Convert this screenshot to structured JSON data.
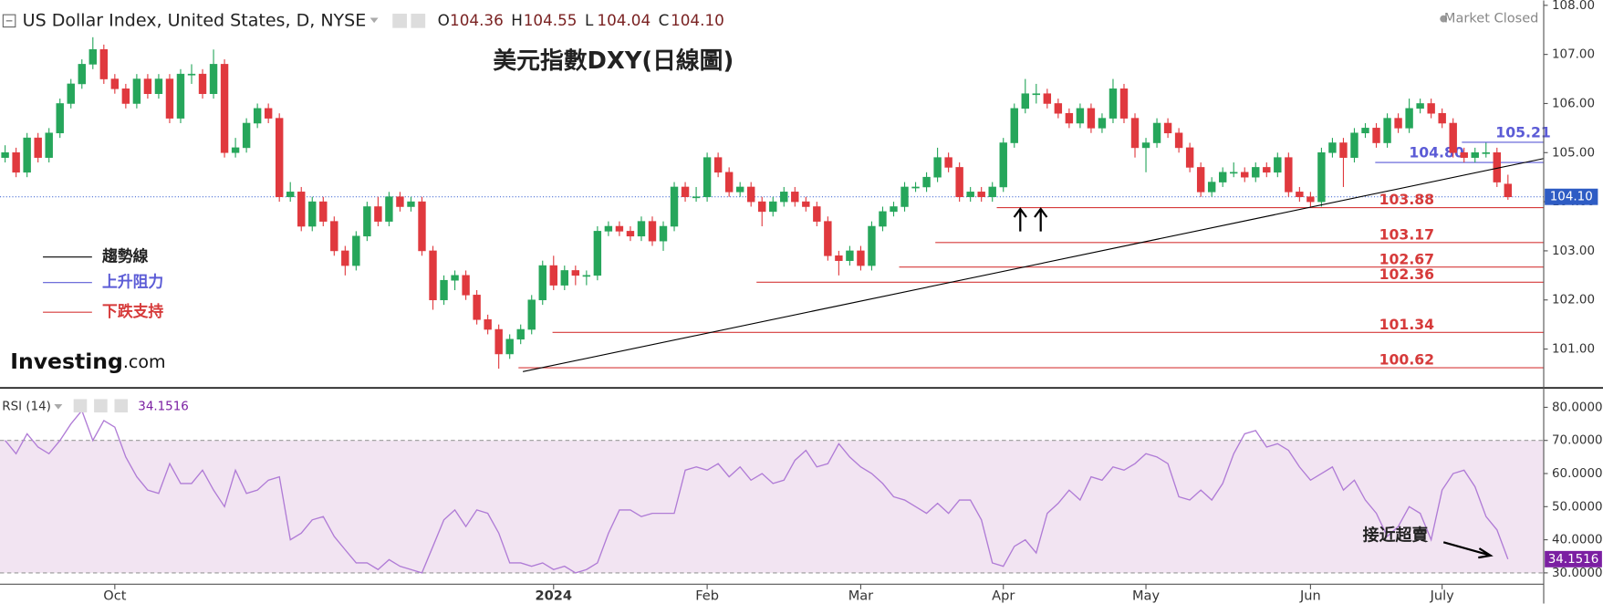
{
  "header": {
    "title": "US Dollar Index, United States, D, NYSE",
    "ohlc": [
      [
        "O",
        "104.36"
      ],
      [
        "H",
        "104.55"
      ],
      [
        "L",
        "104.04"
      ],
      [
        "C",
        "104.10"
      ]
    ],
    "status": "Market Closed",
    "brand": "Investing",
    "brand_suffix": ".com"
  },
  "chart_data": [
    {
      "type": "candlestick",
      "title": "美元指數DXY(日線圖)",
      "up_color": "#26a65b",
      "down_color": "#e0393e",
      "xlim": [
        -0.466,
        140.26
      ],
      "ylim": [
        100.23,
        108.1
      ],
      "yticks": [
        {
          "value": 101,
          "label": "101.00"
        },
        {
          "value": 102,
          "label": "102.00"
        },
        {
          "value": 103,
          "label": "103.00"
        },
        {
          "value": 104,
          "label": "104.00"
        },
        {
          "value": 105,
          "label": "105.00"
        },
        {
          "value": 106,
          "label": "106.00"
        },
        {
          "value": 107,
          "label": "107.00"
        },
        {
          "value": 108,
          "label": "108.00"
        }
      ],
      "last_price": 104.1,
      "last_price_label": "104.10",
      "trendline": {
        "name": "趨勢線",
        "color": "#000000",
        "x": [
          47.2,
          140.26
        ],
        "y": [
          100.54,
          104.88
        ]
      },
      "resistance": {
        "name": "上升阻力",
        "color": "#5b5bd6",
        "levels": [
          {
            "value": 105.21,
            "label": "105.21",
            "from": 132.8
          },
          {
            "value": 104.8,
            "label": "104.80",
            "from": 124.9
          }
        ]
      },
      "support": {
        "name": "下跌支持",
        "color": "#d63a3a",
        "levels": [
          {
            "value": 103.88,
            "label": "103.88",
            "from": 90.4
          },
          {
            "value": 103.17,
            "label": "103.17",
            "from": 84.8
          },
          {
            "value": 102.67,
            "label": "102.67",
            "from": 81.5
          },
          {
            "value": 102.36,
            "label": "102.36",
            "from": 68.5
          },
          {
            "value": 101.34,
            "label": "101.34",
            "from": 49.9
          },
          {
            "value": 100.62,
            "label": "100.62",
            "from": 46.8
          }
        ]
      },
      "candles": [
        [
          104.9,
          105.15,
          104.8,
          105.0
        ],
        [
          105.0,
          105.1,
          104.5,
          104.6
        ],
        [
          104.6,
          105.4,
          104.5,
          105.3
        ],
        [
          105.3,
          105.4,
          104.8,
          104.9
        ],
        [
          104.9,
          105.5,
          104.8,
          105.4
        ],
        [
          105.4,
          106.1,
          105.3,
          106.0
        ],
        [
          106.0,
          106.5,
          105.9,
          106.4
        ],
        [
          106.4,
          106.9,
          106.3,
          106.8
        ],
        [
          106.8,
          107.35,
          106.7,
          107.1
        ],
        [
          107.1,
          107.2,
          106.4,
          106.5
        ],
        [
          106.5,
          106.6,
          106.2,
          106.3
        ],
        [
          106.3,
          106.4,
          105.9,
          106.0
        ],
        [
          106.0,
          106.6,
          105.9,
          106.5
        ],
        [
          106.5,
          106.6,
          106.1,
          106.2
        ],
        [
          106.2,
          106.6,
          106.1,
          106.5
        ],
        [
          106.5,
          106.6,
          105.6,
          105.7
        ],
        [
          105.7,
          106.7,
          105.6,
          106.6
        ],
        [
          106.6,
          106.8,
          106.4,
          106.6
        ],
        [
          106.6,
          106.7,
          106.1,
          106.2
        ],
        [
          106.2,
          107.1,
          106.1,
          106.8
        ],
        [
          106.8,
          106.9,
          104.9,
          105.0
        ],
        [
          105.0,
          105.3,
          104.9,
          105.1
        ],
        [
          105.1,
          105.7,
          105.0,
          105.6
        ],
        [
          105.6,
          106.0,
          105.5,
          105.9
        ],
        [
          105.9,
          106.0,
          105.6,
          105.7
        ],
        [
          105.7,
          105.8,
          104.0,
          104.1
        ],
        [
          104.1,
          104.4,
          104.0,
          104.2
        ],
        [
          104.2,
          104.3,
          103.4,
          103.5
        ],
        [
          103.5,
          104.1,
          103.4,
          104.0
        ],
        [
          104.0,
          104.1,
          103.5,
          103.6
        ],
        [
          103.6,
          103.7,
          102.9,
          103.0
        ],
        [
          103.0,
          103.1,
          102.5,
          102.7
        ],
        [
          102.7,
          103.4,
          102.6,
          103.3
        ],
        [
          103.3,
          104.0,
          103.2,
          103.9
        ],
        [
          103.9,
          104.1,
          103.5,
          103.6
        ],
        [
          103.6,
          104.2,
          103.5,
          104.1
        ],
        [
          104.1,
          104.2,
          103.8,
          103.9
        ],
        [
          103.9,
          104.1,
          103.8,
          104.0
        ],
        [
          104.0,
          104.1,
          102.9,
          103.0
        ],
        [
          103.0,
          103.1,
          101.8,
          102.0
        ],
        [
          102.0,
          102.5,
          101.9,
          102.4
        ],
        [
          102.4,
          102.6,
          102.2,
          102.5
        ],
        [
          102.5,
          102.6,
          102.0,
          102.1
        ],
        [
          102.1,
          102.2,
          101.5,
          101.6
        ],
        [
          101.6,
          101.7,
          101.3,
          101.4
        ],
        [
          101.4,
          101.5,
          100.6,
          100.9
        ],
        [
          100.9,
          101.3,
          100.8,
          101.2
        ],
        [
          101.2,
          101.5,
          101.1,
          101.4
        ],
        [
          101.4,
          102.1,
          101.3,
          102.0
        ],
        [
          102.0,
          102.8,
          101.9,
          102.7
        ],
        [
          102.7,
          102.9,
          102.2,
          102.3
        ],
        [
          102.3,
          102.7,
          102.2,
          102.6
        ],
        [
          102.6,
          102.7,
          102.3,
          102.5
        ],
        [
          102.5,
          102.6,
          102.3,
          102.5
        ],
        [
          102.5,
          103.5,
          102.4,
          103.4
        ],
        [
          103.4,
          103.6,
          103.3,
          103.5
        ],
        [
          103.5,
          103.6,
          103.3,
          103.4
        ],
        [
          103.4,
          103.5,
          103.2,
          103.3
        ],
        [
          103.3,
          103.7,
          103.2,
          103.6
        ],
        [
          103.6,
          103.7,
          103.1,
          103.2
        ],
        [
          103.2,
          103.6,
          103.0,
          103.5
        ],
        [
          103.5,
          104.4,
          103.4,
          104.3
        ],
        [
          104.3,
          104.4,
          104.0,
          104.1
        ],
        [
          104.1,
          104.3,
          104.0,
          104.1
        ],
        [
          104.1,
          105.0,
          104.0,
          104.9
        ],
        [
          104.9,
          105.0,
          104.5,
          104.6
        ],
        [
          104.6,
          104.7,
          104.1,
          104.2
        ],
        [
          104.2,
          104.4,
          104.1,
          104.3
        ],
        [
          104.3,
          104.4,
          103.9,
          104.0
        ],
        [
          104.0,
          104.1,
          103.5,
          103.8
        ],
        [
          103.8,
          104.1,
          103.7,
          104.0
        ],
        [
          104.0,
          104.3,
          103.9,
          104.2
        ],
        [
          104.2,
          104.3,
          103.9,
          104.0
        ],
        [
          104.0,
          104.1,
          103.8,
          103.9
        ],
        [
          103.9,
          104.0,
          103.5,
          103.6
        ],
        [
          103.6,
          103.7,
          102.8,
          102.9
        ],
        [
          102.9,
          103.0,
          102.5,
          102.8
        ],
        [
          102.8,
          103.1,
          102.7,
          103.0
        ],
        [
          103.0,
          103.1,
          102.6,
          102.7
        ],
        [
          102.7,
          103.6,
          102.6,
          103.5
        ],
        [
          103.5,
          103.9,
          103.4,
          103.8
        ],
        [
          103.8,
          104.0,
          103.7,
          103.9
        ],
        [
          103.9,
          104.4,
          103.8,
          104.3
        ],
        [
          104.3,
          104.4,
          104.2,
          104.3
        ],
        [
          104.3,
          104.6,
          104.2,
          104.5
        ],
        [
          104.5,
          105.1,
          104.4,
          104.9
        ],
        [
          104.9,
          105.0,
          104.6,
          104.7
        ],
        [
          104.7,
          104.8,
          104.0,
          104.1
        ],
        [
          104.1,
          104.3,
          104.0,
          104.2
        ],
        [
          104.2,
          104.3,
          104.0,
          104.1
        ],
        [
          104.1,
          104.4,
          104.0,
          104.3
        ],
        [
          104.3,
          105.3,
          104.2,
          105.2
        ],
        [
          105.2,
          106.0,
          105.1,
          105.9
        ],
        [
          105.9,
          106.5,
          105.8,
          106.2
        ],
        [
          106.2,
          106.4,
          106.0,
          106.2
        ],
        [
          106.2,
          106.3,
          105.9,
          106.0
        ],
        [
          106.0,
          106.1,
          105.7,
          105.8
        ],
        [
          105.8,
          105.9,
          105.5,
          105.6
        ],
        [
          105.6,
          106.0,
          105.5,
          105.9
        ],
        [
          105.9,
          106.0,
          105.4,
          105.5
        ],
        [
          105.5,
          105.8,
          105.4,
          105.7
        ],
        [
          105.7,
          106.5,
          105.6,
          106.3
        ],
        [
          106.3,
          106.4,
          105.6,
          105.7
        ],
        [
          105.7,
          105.8,
          104.9,
          105.1
        ],
        [
          105.1,
          105.3,
          104.6,
          105.2
        ],
        [
          105.2,
          105.7,
          105.1,
          105.6
        ],
        [
          105.6,
          105.7,
          105.3,
          105.4
        ],
        [
          105.4,
          105.5,
          105.0,
          105.1
        ],
        [
          105.1,
          105.2,
          104.6,
          104.7
        ],
        [
          104.7,
          104.8,
          104.1,
          104.2
        ],
        [
          104.2,
          104.5,
          104.1,
          104.4
        ],
        [
          104.4,
          104.7,
          104.3,
          104.6
        ],
        [
          104.6,
          104.8,
          104.5,
          104.6
        ],
        [
          104.6,
          104.7,
          104.4,
          104.5
        ],
        [
          104.5,
          104.8,
          104.4,
          104.7
        ],
        [
          104.7,
          104.8,
          104.5,
          104.6
        ],
        [
          104.6,
          105.0,
          104.5,
          104.9
        ],
        [
          104.9,
          105.0,
          104.1,
          104.2
        ],
        [
          104.2,
          104.3,
          104.0,
          104.1
        ],
        [
          104.1,
          104.2,
          103.9,
          104.0
        ],
        [
          104.0,
          105.1,
          103.9,
          105.0
        ],
        [
          105.0,
          105.3,
          104.9,
          105.2
        ],
        [
          105.2,
          105.3,
          104.3,
          104.9
        ],
        [
          104.9,
          105.5,
          104.8,
          105.4
        ],
        [
          105.4,
          105.6,
          105.3,
          105.5
        ],
        [
          105.5,
          105.6,
          105.1,
          105.2
        ],
        [
          105.2,
          105.8,
          105.1,
          105.7
        ],
        [
          105.7,
          105.8,
          105.4,
          105.5
        ],
        [
          105.5,
          106.1,
          105.4,
          105.9
        ],
        [
          105.9,
          106.1,
          105.8,
          106.0
        ],
        [
          106.0,
          106.1,
          105.7,
          105.8
        ],
        [
          105.8,
          105.9,
          105.5,
          105.6
        ],
        [
          105.6,
          105.7,
          104.9,
          105.0
        ],
        [
          105.0,
          105.1,
          104.8,
          104.9
        ],
        [
          104.9,
          105.1,
          104.8,
          105.0
        ],
        [
          105.0,
          105.2,
          104.9,
          105.0
        ],
        [
          105.0,
          105.1,
          104.3,
          104.4
        ],
        [
          104.36,
          104.55,
          104.04,
          104.1
        ]
      ]
    },
    {
      "type": "line",
      "title": "RSI (14)",
      "color": "#b07cd6",
      "band": [
        30,
        70
      ],
      "band_color": "#f2e4f2",
      "current_label": "34.1516",
      "annotation": "接近超賣",
      "xlim": [
        -0.466,
        140.26
      ],
      "ylim": [
        26.9,
        85.56
      ],
      "xticks": [
        {
          "value": 10,
          "label": "Oct"
        },
        {
          "value": 50,
          "label": "2024"
        },
        {
          "value": 64,
          "label": "Feb"
        },
        {
          "value": 78,
          "label": "Mar"
        },
        {
          "value": 91,
          "label": "Apr"
        },
        {
          "value": 104,
          "label": "May"
        },
        {
          "value": 119,
          "label": "Jun"
        },
        {
          "value": 131,
          "label": "July"
        }
      ],
      "yticks": [
        {
          "value": 30,
          "label": "30.0000"
        },
        {
          "value": 40,
          "label": "40.0000"
        },
        {
          "value": 50,
          "label": "50.0000"
        },
        {
          "value": 60,
          "label": "60.0000"
        },
        {
          "value": 70,
          "label": "70.0000"
        },
        {
          "value": 80,
          "label": "80.0000"
        }
      ],
      "values": [
        70,
        66,
        72,
        68,
        66,
        70,
        75,
        79,
        70,
        76,
        74,
        65,
        59,
        55,
        54,
        63,
        57,
        57,
        61,
        55,
        50,
        61,
        54,
        55,
        58,
        59,
        40,
        42,
        46,
        47,
        41,
        37,
        33,
        33,
        31,
        34,
        32,
        31,
        30,
        38,
        46,
        49,
        44,
        49,
        48,
        42,
        33,
        33,
        32,
        33,
        31,
        32,
        30,
        31,
        33,
        42,
        49,
        49,
        47,
        48,
        48,
        48,
        61,
        62,
        61,
        63,
        59,
        62,
        58,
        60,
        57,
        58,
        64,
        67,
        62,
        63,
        69,
        65,
        62,
        60,
        57,
        53,
        52,
        50,
        48,
        51,
        48,
        52,
        52,
        46,
        33,
        32,
        38,
        40,
        36,
        48,
        51,
        55,
        52,
        59,
        58,
        62,
        61,
        63,
        66,
        65,
        63,
        53,
        52,
        55,
        52,
        57,
        66,
        72,
        73,
        68,
        69,
        67,
        62,
        58,
        60,
        62,
        55,
        58,
        52,
        48,
        41,
        44,
        50,
        48,
        40,
        55,
        60,
        61,
        56,
        47,
        43,
        34.1516
      ]
    }
  ]
}
